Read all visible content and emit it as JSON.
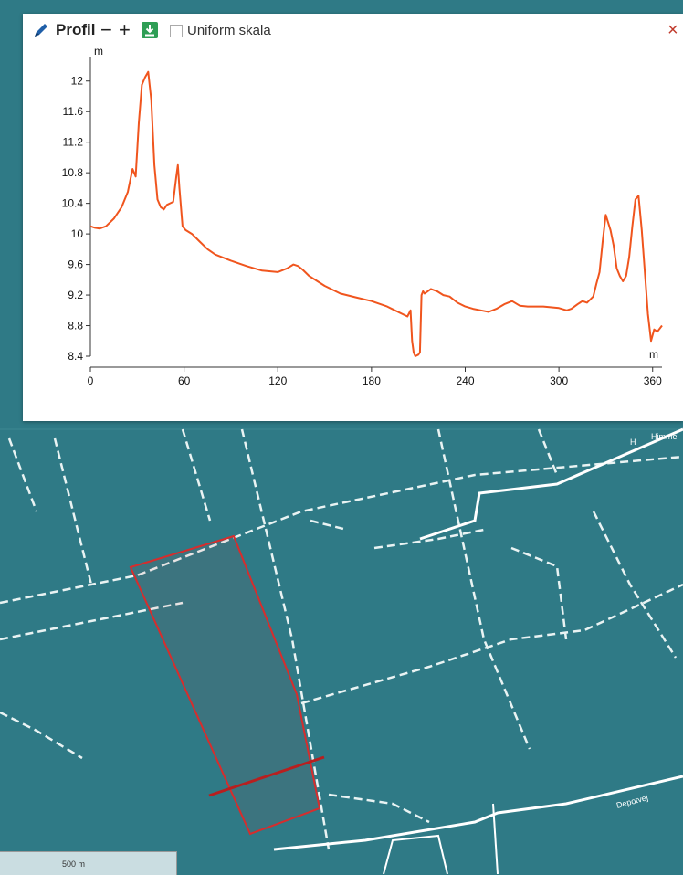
{
  "panel": {
    "title": "Profil",
    "minus_label": "−",
    "plus_label": "+",
    "uniform_label": "Uniform skala",
    "uniform_checked": false,
    "close_label": "×"
  },
  "icons": {
    "pen": "pen-icon",
    "download": "download-icon",
    "close": "close-icon"
  },
  "colors": {
    "profile_line": "#f0551e",
    "selection": "#d62d2d",
    "profile_cut": "#b81f1f",
    "download_bg": "#2e9e55",
    "map_bg": "#2f7a86"
  },
  "map": {
    "road_labels": [
      "H",
      "Himme",
      "Depotvej"
    ],
    "scale_label": "500 m"
  },
  "chart_data": {
    "type": "line",
    "title": "",
    "xlabel": "m",
    "ylabel": "m",
    "xlim": [
      0,
      366
    ],
    "ylim": [
      8.4,
      12.2
    ],
    "xticks": [
      0,
      60,
      120,
      180,
      240,
      300,
      360
    ],
    "yticks": [
      8.4,
      8.8,
      9.2,
      9.6,
      10,
      10.4,
      10.8,
      11.2,
      11.6,
      12
    ],
    "series": [
      {
        "x": [
          0,
          3,
          6,
          10,
          15,
          20,
          24,
          27,
          29,
          31,
          33,
          35,
          37,
          39,
          41,
          43,
          45,
          47,
          49,
          51,
          53,
          55,
          56,
          57,
          59,
          61,
          65,
          70,
          75,
          80,
          90,
          100,
          110,
          120,
          126,
          130,
          133,
          136,
          140,
          150,
          160,
          170,
          180,
          190,
          195,
          200,
          203,
          205,
          206,
          207,
          208,
          210,
          211,
          212,
          213,
          214,
          218,
          222,
          226,
          230,
          235,
          240,
          245,
          250,
          255,
          260,
          265,
          270,
          275,
          280,
          290,
          300,
          305,
          308,
          312,
          315,
          318,
          322,
          324,
          326,
          328,
          330,
          333,
          335,
          337,
          339,
          341,
          343,
          345,
          347,
          349,
          351,
          353,
          355,
          357,
          359,
          361,
          363,
          366
        ],
        "values": [
          10.1,
          10.08,
          10.07,
          10.1,
          10.2,
          10.35,
          10.55,
          10.85,
          10.75,
          11.45,
          11.95,
          12.05,
          12.12,
          11.75,
          10.9,
          10.45,
          10.35,
          10.32,
          10.38,
          10.4,
          10.42,
          10.75,
          10.9,
          10.6,
          10.1,
          10.05,
          10.0,
          9.9,
          9.8,
          9.73,
          9.65,
          9.58,
          9.52,
          9.5,
          9.55,
          9.6,
          9.58,
          9.53,
          9.45,
          9.32,
          9.22,
          9.17,
          9.12,
          9.05,
          9.0,
          8.95,
          8.92,
          9.0,
          8.6,
          8.45,
          8.4,
          8.42,
          8.45,
          9.2,
          9.25,
          9.22,
          9.28,
          9.25,
          9.2,
          9.18,
          9.1,
          9.05,
          9.02,
          9.0,
          8.98,
          9.02,
          9.08,
          9.12,
          9.06,
          9.05,
          9.05,
          9.03,
          9.0,
          9.02,
          9.08,
          9.12,
          9.1,
          9.18,
          9.35,
          9.5,
          9.9,
          10.25,
          10.05,
          9.85,
          9.55,
          9.45,
          9.38,
          9.45,
          9.7,
          10.1,
          10.45,
          10.5,
          10.05,
          9.5,
          8.95,
          8.6,
          8.75,
          8.72,
          8.8
        ]
      }
    ]
  }
}
